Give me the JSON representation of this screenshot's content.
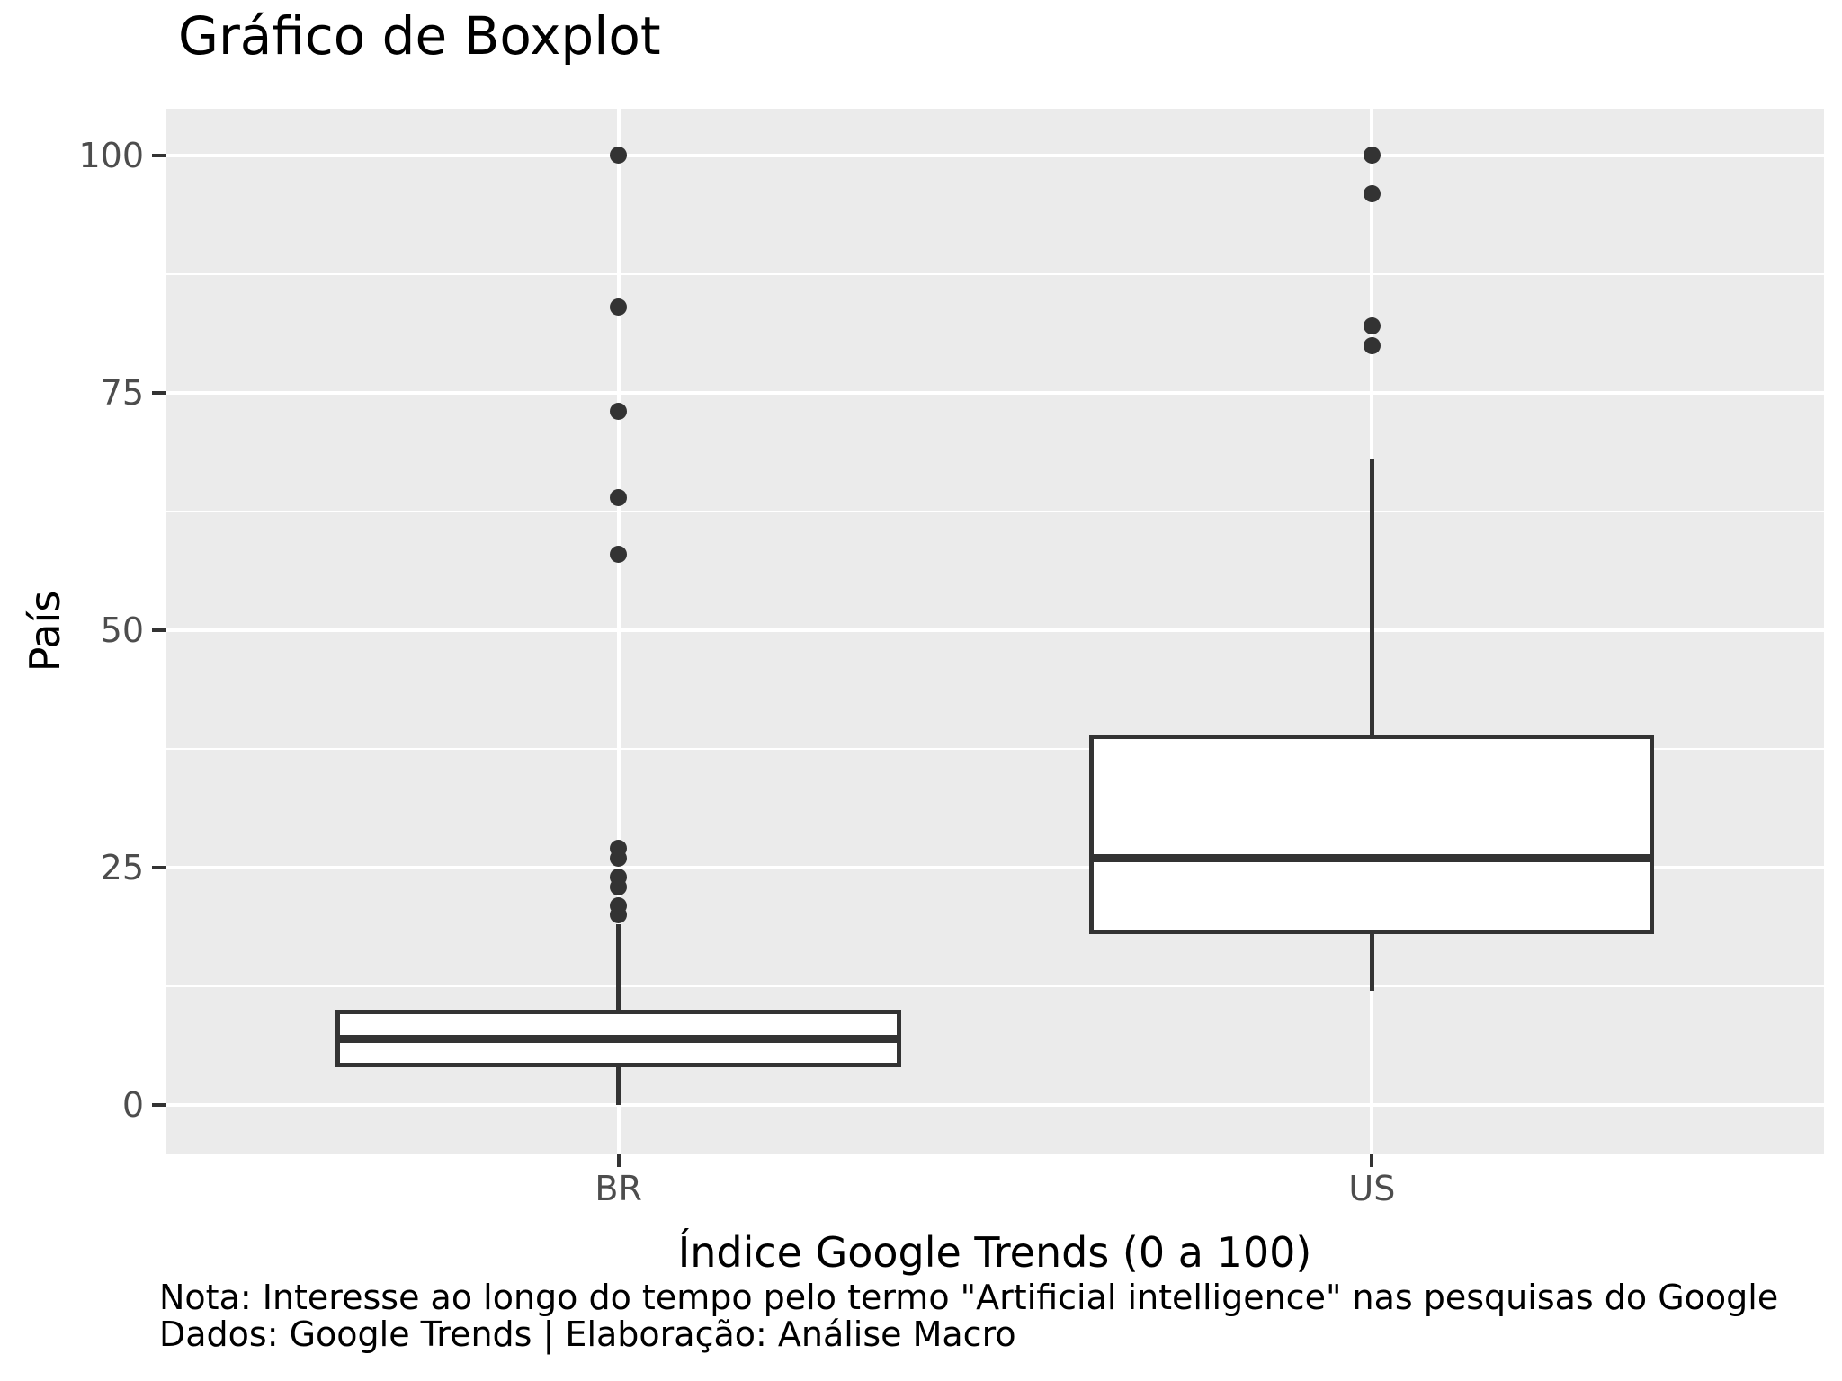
{
  "chart_data": {
    "type": "boxplot",
    "title": "Gráfico de Boxplot",
    "xlabel": "Índice Google Trends (0 a 100)",
    "ylabel": "País",
    "caption_lines": [
      "Nota: Interesse ao longo do tempo pelo termo \"Artificial intelligence\" nas pesquisas do Google",
      "Dados: Google Trends | Elaboração: Análise Macro"
    ],
    "categories": [
      "BR",
      "US"
    ],
    "y_ticks": [
      0,
      25,
      50,
      75,
      100
    ],
    "y_minor_ticks": [
      12.5,
      37.5,
      62.5,
      87.5
    ],
    "ylim": [
      -5.2,
      104.9
    ],
    "grid": true,
    "legend": "none",
    "series": [
      {
        "name": "BR",
        "whisker_low": 0,
        "q1": 4,
        "median": 7,
        "q3": 10,
        "whisker_high": 19,
        "outliers": [
          20,
          21,
          23,
          24,
          26,
          27,
          58,
          64,
          73,
          84,
          100
        ]
      },
      {
        "name": "US",
        "whisker_low": 12,
        "q1": 18,
        "median": 26,
        "q3": 39,
        "whisker_high": 68,
        "outliers": [
          80,
          82,
          96,
          100
        ]
      }
    ],
    "colors": {
      "panel_bg": "#EBEBEB",
      "grid": "#FFFFFF",
      "stroke": "#333333",
      "box_fill": "#FFFFFF",
      "tick_text": "#4D4D4D",
      "text": "#000000"
    }
  }
}
